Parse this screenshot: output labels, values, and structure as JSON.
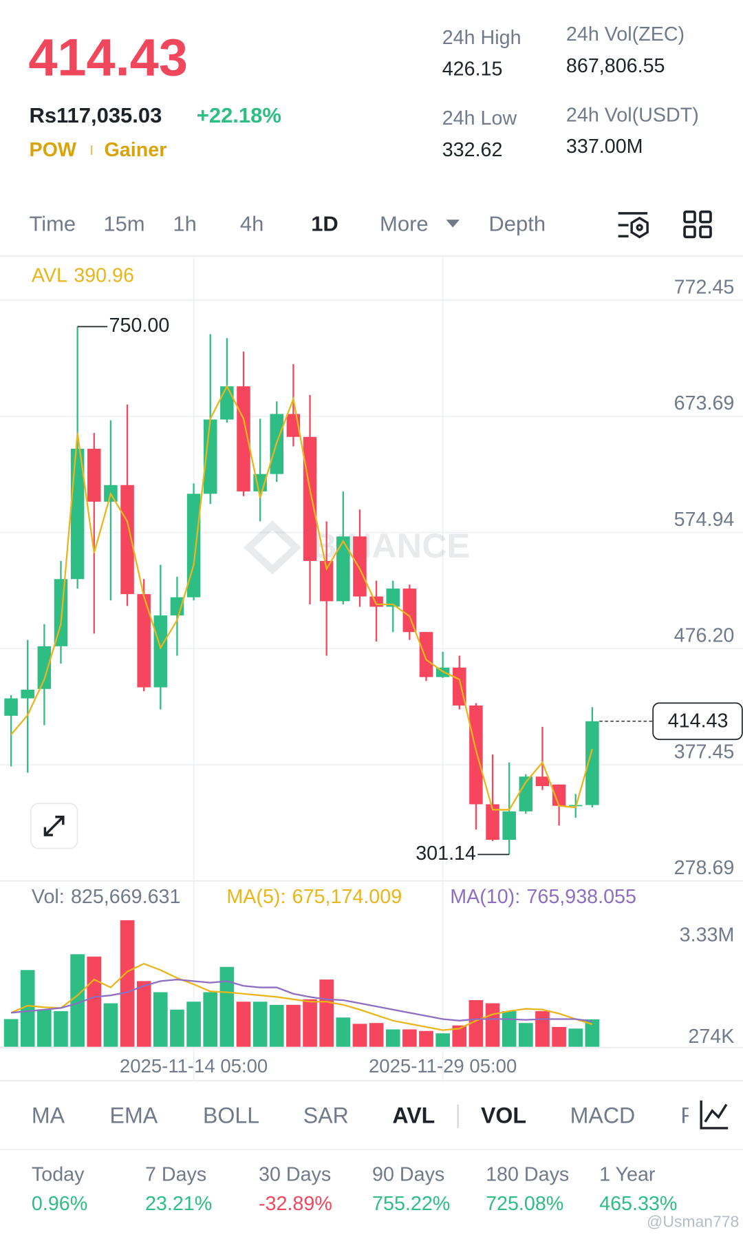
{
  "header": {
    "price": "414.43",
    "fiat_price": "Rs117,035.03",
    "change": "+22.18%",
    "tags": [
      "POW",
      "Gainer"
    ],
    "stats": [
      {
        "label": "24h High",
        "value": "426.15"
      },
      {
        "label": "24h Vol(ZEC)",
        "value": "867,806.55"
      },
      {
        "label": "24h Low",
        "value": "332.62"
      },
      {
        "label": "24h Vol(USDT)",
        "value": "337.00M"
      }
    ]
  },
  "intervals": {
    "items": [
      "Time",
      "15m",
      "1h",
      "4h",
      "1D",
      "More",
      "Depth"
    ],
    "active": [
      4
    ]
  },
  "chart_data": [
    {
      "type": "candlestick",
      "open": [
        419.09,
        433.87,
        441.93,
        478.2,
        535.31,
        646.15,
        601.14,
        615.25,
        522.54,
        443.27,
        504.4,
        519.86,
        607.86,
        671.01,
        699.23,
        609.88,
        624.66,
        675.71,
        656.23,
        550.76,
        516.5,
        571.58,
        520.53,
        511.79,
        527.25,
        490.3,
        452.0,
        460.07,
        427.82,
        343.84,
        313.61,
        337.8,
        367.36,
        360.64,
        342.5,
        343.17
      ],
      "high": [
        436.55,
        483.58,
        497.01,
        550.76,
        750,
        659.59,
        670.34,
        683.78,
        535.31,
        547.4,
        537.32,
        616.6,
        743.57,
        740.21,
        728.79,
        671.68,
        686.46,
        718.04,
        691.84,
        584.35,
        609.88,
        594.43,
        533.96,
        533.96,
        530.6,
        490.3,
        473.5,
        470.14,
        429.83,
        386.17,
        379.45,
        369.37,
        409.68,
        360.64,
        352.58,
        426.48
      ],
      "low": [
        376.09,
        370.72,
        411.02,
        463.42,
        527.25,
        488.95,
        517.17,
        512.47,
        439.91,
        424.46,
        470.14,
        517.17,
        599.13,
        668.32,
        605.85,
        584.35,
        617.94,
        648.17,
        513.81,
        470.14,
        513.81,
        511.79,
        482.24,
        490.3,
        483.58,
        448.65,
        451.33,
        424.46,
        322.35,
        312.58,
        301.14,
        335.78,
        355.94,
        325.71,
        332.42,
        341.16
      ],
      "close": [
        433.87,
        441.26,
        478.2,
        535.31,
        646.15,
        601.14,
        615.25,
        522.54,
        443.27,
        504.4,
        519.86,
        607.86,
        671.01,
        699.23,
        609.88,
        624.66,
        675.71,
        656.23,
        550.76,
        516.5,
        571.58,
        520.53,
        511.79,
        527.25,
        490.3,
        452.0,
        460.07,
        427.82,
        343.84,
        313.61,
        337.8,
        367.36,
        359.3,
        342.5,
        343.17,
        414.43
      ],
      "high_label": "750.00",
      "up_color": "#2ebd85",
      "down_color": "#f6465d",
      "ylim": [
        278.69,
        809.4
      ],
      "yticks": [
        772.45,
        673.69,
        574.94,
        {
          "value": 476.2,
          "label": "476.20"
        },
        377.45,
        278.69
      ],
      "grid": true,
      "series": [
        {
          "name": "AVL",
          "type": "line",
          "color": "#e9b51d",
          "values": [
            402.96,
            419.76,
            449.99,
            497.01,
            659.59,
            557.48,
            607.86,
            584.35,
            520.53,
            476.86,
            500.37,
            547.4,
            671.68,
            699.23,
            671.68,
            604.5,
            651.53,
            688.48,
            611.22,
            544.04,
            567.55,
            544.04,
            513.81,
            513.81,
            503.73,
            466.78,
            456.71,
            449.99,
            389.53,
            339.14,
            339.14,
            362.65,
            379.45,
            342.5,
            341.16,
            390.96
          ]
        }
      ]
    },
    {
      "type": "bar",
      "categories": [
        null,
        null,
        null,
        null,
        null,
        null,
        null,
        null,
        null,
        null,
        null,
        "2025-11-14 05:00",
        null,
        null,
        null,
        null,
        null,
        null,
        null,
        null,
        null,
        null,
        null,
        null,
        null,
        null,
        "2025-11-29 05:00",
        null,
        null,
        null,
        null,
        null,
        null,
        null,
        null,
        null
      ],
      "ylim": [
        0,
        3920000
      ],
      "yticks": [
        {
          "value": 3330000,
          "label": "3.33M"
        },
        {
          "value": 274000,
          "label": "274K"
        }
      ],
      "series": [
        {
          "name": "Vol:",
          "readout": "825,669.631",
          "color": "#707a8a",
          "type": "bar",
          "values": [
            833000,
            2307000,
            1118000,
            1070000,
            2783000,
            2712000,
            1308000,
            3806000,
            1974000,
            1641000,
            1118000,
            1356000,
            1641000,
            2402000,
            1356000,
            1356000,
            1261000,
            1261000,
            1427000,
            2022000,
            880000,
            690000,
            714000,
            523000,
            523000,
            476000,
            404000,
            642000,
            1403000,
            1308000,
            1070000,
            714000,
            1070000,
            595000,
            547000,
            825669.631
          ]
        },
        {
          "name": "MA(5):",
          "readout": "675,174.009",
          "color": "#e9b51d",
          "type": "line",
          "values": [
            1023000,
            1237000,
            1189000,
            1166000,
            1546000,
            2022000,
            1784000,
            2260000,
            2498000,
            2307000,
            2069000,
            1879000,
            1665000,
            1641000,
            1594000,
            1546000,
            1499000,
            1427000,
            1356000,
            1356000,
            1261000,
            1118000,
            951000,
            785000,
            690000,
            595000,
            500000,
            547000,
            785000,
            975000,
            1070000,
            1142000,
            1118000,
            999000,
            833000,
            675174.009
          ]
        },
        {
          "name": "MA(10):",
          "readout": "765,938.055",
          "color": "#8e6ec0",
          "type": "line",
          "values": [
            1023000,
            1070000,
            1118000,
            1166000,
            1308000,
            1499000,
            1546000,
            1641000,
            1832000,
            1974000,
            2022000,
            1974000,
            1927000,
            1974000,
            1832000,
            1784000,
            1784000,
            1594000,
            1499000,
            1427000,
            1403000,
            1308000,
            1213000,
            1118000,
            1023000,
            928000,
            833000,
            785000,
            833000,
            833000,
            833000,
            809000,
            833000,
            833000,
            833000,
            765938.055
          ]
        }
      ]
    }
  ],
  "indicators": {
    "items": [
      "MA",
      "EMA",
      "BOLL",
      "SAR",
      "AVL",
      "VOL",
      "MACD",
      "R"
    ],
    "active": [
      4,
      5
    ]
  },
  "performance": [
    {
      "label": "Today",
      "value": "0.96%"
    },
    {
      "label": "7 Days",
      "value": "23.21%"
    },
    {
      "label": "30 Days",
      "value": "-32.89%"
    },
    {
      "label": "90 Days",
      "value": "755.22%"
    },
    {
      "label": "180 Days",
      "value": "725.08%"
    },
    {
      "label": "1 Year",
      "value": "465.33%"
    }
  ],
  "watermarks": {
    "chart": "BINANCE",
    "footer": "@Usman778"
  }
}
